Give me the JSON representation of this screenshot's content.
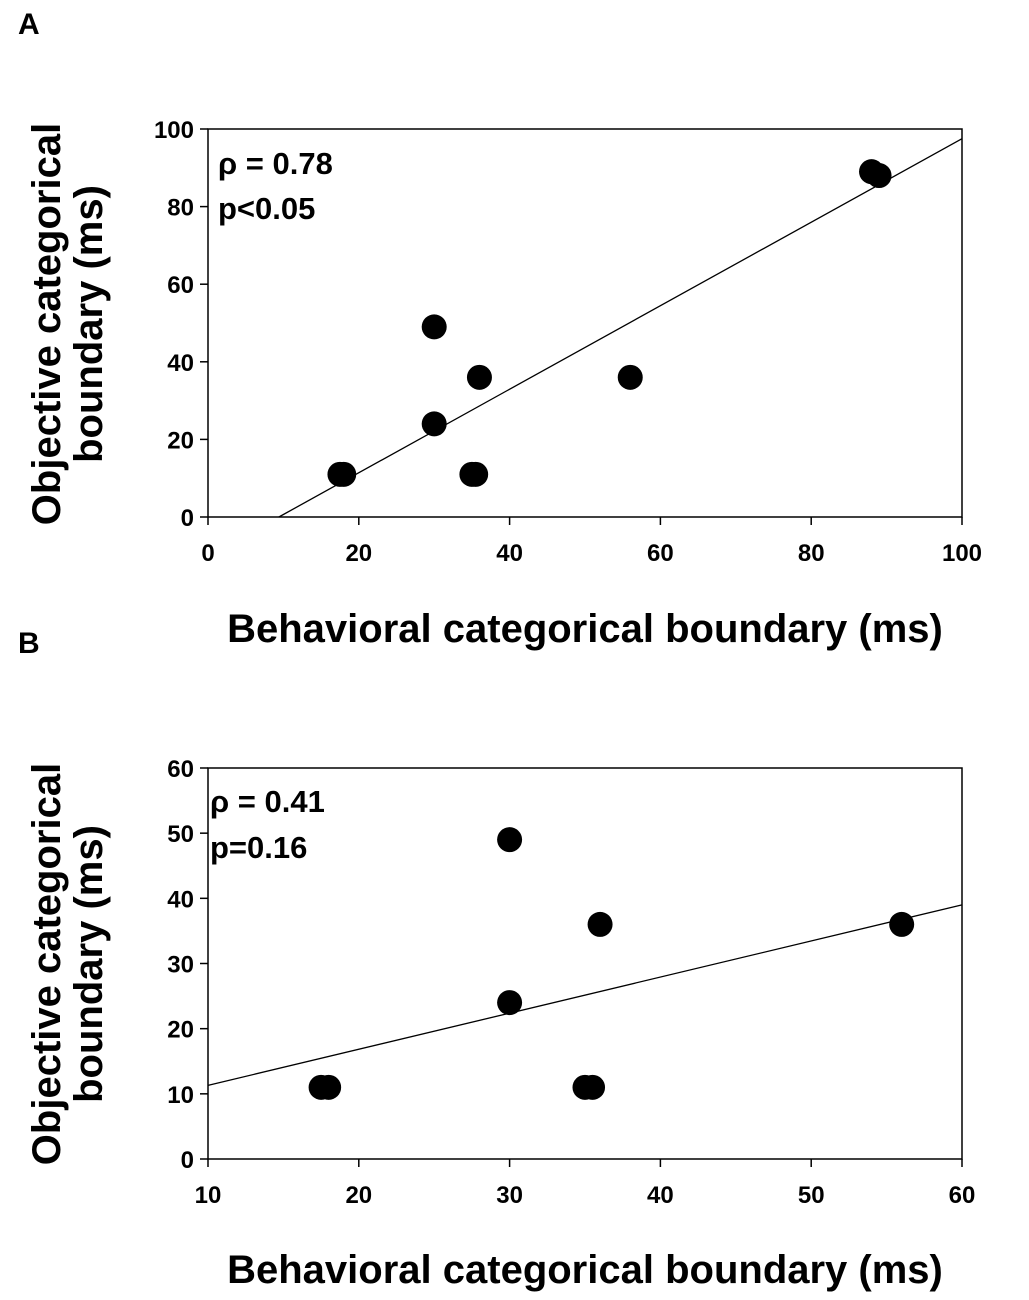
{
  "chart_data": [
    {
      "type": "scatter",
      "panel_label": "A",
      "xlabel": "Behavioral categorical boundary (ms)",
      "ylabel_line1": "Objective categorical",
      "ylabel_line2": "boundary (ms)",
      "xlim": [
        0,
        100
      ],
      "ylim": [
        0,
        100
      ],
      "xticks": [
        "0",
        "20",
        "40",
        "60",
        "80",
        "100"
      ],
      "yticks": [
        "0",
        "20",
        "40",
        "60",
        "80",
        "100"
      ],
      "annotation_line1": "ρ = 0.78",
      "annotation_line2": "p<0.05",
      "points": [
        {
          "x": 17.5,
          "y": 11
        },
        {
          "x": 18,
          "y": 11
        },
        {
          "x": 30,
          "y": 49
        },
        {
          "x": 30,
          "y": 24
        },
        {
          "x": 35,
          "y": 11
        },
        {
          "x": 35.5,
          "y": 11
        },
        {
          "x": 36,
          "y": 36
        },
        {
          "x": 56,
          "y": 36
        },
        {
          "x": 88,
          "y": 89
        },
        {
          "x": 89,
          "y": 88
        }
      ],
      "fit_line": {
        "x1": 9.4,
        "y1": 0,
        "x2": 100,
        "y2": 97.5
      }
    },
    {
      "type": "scatter",
      "panel_label": "B",
      "xlabel": "Behavioral categorical boundary (ms)",
      "ylabel_line1": "Objective categorical",
      "ylabel_line2": "boundary (ms)",
      "xlim": [
        10,
        60
      ],
      "ylim": [
        0,
        60
      ],
      "xticks": [
        "10",
        "20",
        "30",
        "40",
        "50",
        "60"
      ],
      "yticks": [
        "0",
        "10",
        "20",
        "30",
        "40",
        "50",
        "60"
      ],
      "annotation_line1": "ρ = 0.41",
      "annotation_line2": "p=0.16",
      "points": [
        {
          "x": 17.5,
          "y": 11
        },
        {
          "x": 18,
          "y": 11
        },
        {
          "x": 30,
          "y": 49
        },
        {
          "x": 30,
          "y": 24
        },
        {
          "x": 35,
          "y": 11
        },
        {
          "x": 35.5,
          "y": 11
        },
        {
          "x": 36,
          "y": 36
        },
        {
          "x": 56,
          "y": 36
        }
      ],
      "fit_line": {
        "x1": 10,
        "y1": 11.3,
        "x2": 60,
        "y2": 39
      }
    }
  ]
}
